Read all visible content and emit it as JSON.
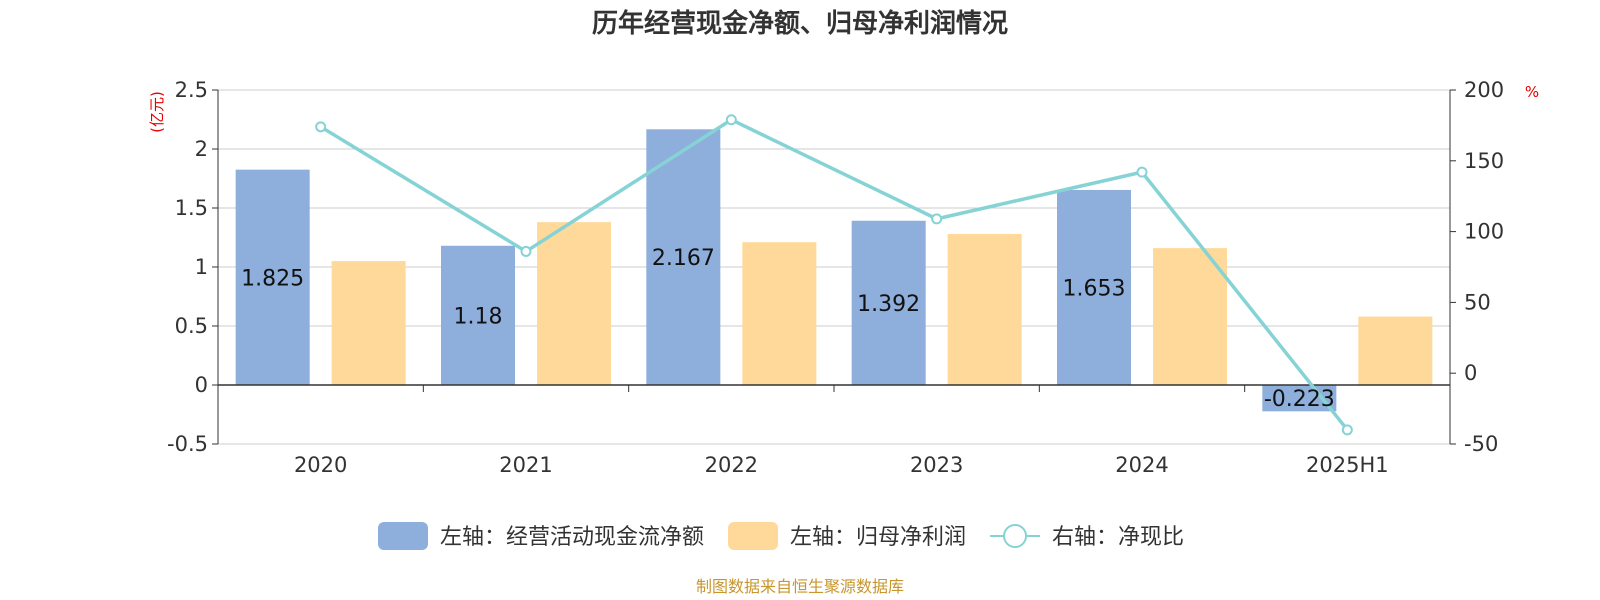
{
  "chart_data": {
    "type": "bar",
    "title": "历年经营现金净额、归母净利润情况",
    "categories": [
      "2020",
      "2021",
      "2022",
      "2023",
      "2024",
      "2025H1"
    ],
    "left_axis": {
      "unit": "(亿元)",
      "min": -0.5,
      "max": 2.5,
      "ticks": [
        "-0.5",
        "0",
        "0.5",
        "1",
        "1.5",
        "2",
        "2.5"
      ]
    },
    "right_axis": {
      "unit": "%",
      "min": -50,
      "max": 200,
      "ticks": [
        "-50",
        "0",
        "50",
        "100",
        "150",
        "200"
      ]
    },
    "series": [
      {
        "name": "左轴：经营活动现金流净额",
        "type": "bar",
        "axis": "left",
        "color": "#8eaedb",
        "values": [
          1.825,
          1.18,
          2.167,
          1.392,
          1.653,
          -0.223
        ],
        "labels": [
          "1.825",
          "1.18",
          "2.167",
          "1.392",
          "1.653",
          "-0.223"
        ]
      },
      {
        "name": "左轴：归母净利润",
        "type": "bar",
        "axis": "left",
        "color": "#ffd999",
        "values": [
          1.05,
          1.38,
          1.21,
          1.28,
          1.16,
          0.58
        ]
      },
      {
        "name": "右轴：净现比",
        "type": "line",
        "axis": "right",
        "color": "#86d3d6",
        "values": [
          174,
          86,
          179,
          109,
          142,
          -40
        ]
      }
    ],
    "grid": true,
    "legend": "bottom"
  },
  "footer": {
    "source": "制图数据来自恒生聚源数据库"
  }
}
